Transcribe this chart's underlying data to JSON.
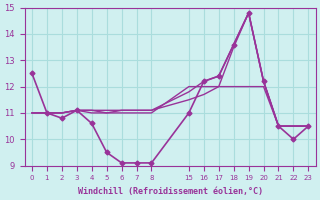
{
  "background_color": "#d0f0f0",
  "grid_color": "#aadddd",
  "line_color": "#993399",
  "marker_color": "#993399",
  "xlabel": "Windchill (Refroidissement éolien,°C)",
  "ylabel": "",
  "title": "",
  "ylim": [
    9,
    15
  ],
  "yticks": [
    9,
    10,
    11,
    12,
    13,
    14,
    15
  ],
  "xticks_left": [
    0,
    1,
    2,
    3,
    4,
    5,
    6,
    7,
    8
  ],
  "xticks_right": [
    15,
    16,
    17,
    18,
    19,
    20,
    21,
    22,
    23
  ],
  "series": [
    {
      "x": [
        0,
        1,
        2,
        3,
        4,
        5,
        6,
        7,
        8,
        15,
        16,
        17,
        18,
        19,
        20,
        21,
        22,
        23
      ],
      "y": [
        12.5,
        11.0,
        10.8,
        11.1,
        10.6,
        9.5,
        9.1,
        9.1,
        9.1,
        11.0,
        12.2,
        12.4,
        13.6,
        14.8,
        12.2,
        10.5,
        10.0,
        10.5
      ],
      "marker": "D",
      "markersize": 2.5,
      "linewidth": 1.2
    },
    {
      "x": [
        0,
        1,
        2,
        3,
        4,
        5,
        6,
        7,
        8,
        15,
        16,
        17,
        18,
        19,
        20,
        21,
        22,
        23
      ],
      "y": [
        11.0,
        11.0,
        11.0,
        11.1,
        11.0,
        11.0,
        11.1,
        11.1,
        11.1,
        11.5,
        11.7,
        12.0,
        13.5,
        14.8,
        12.2,
        10.5,
        10.5,
        10.5
      ],
      "marker": "D",
      "markersize": 0,
      "linewidth": 1.0
    },
    {
      "x": [
        0,
        1,
        2,
        3,
        4,
        5,
        6,
        7,
        8,
        15,
        16,
        17,
        18,
        19,
        20,
        21,
        22,
        23
      ],
      "y": [
        11.0,
        11.0,
        11.0,
        11.1,
        11.1,
        11.1,
        11.1,
        11.1,
        11.1,
        11.8,
        12.2,
        12.4,
        13.6,
        14.8,
        12.2,
        10.5,
        10.5,
        10.5
      ],
      "marker": "D",
      "markersize": 0,
      "linewidth": 1.0
    },
    {
      "x": [
        0,
        1,
        2,
        3,
        4,
        5,
        6,
        7,
        8,
        15,
        16,
        17,
        18,
        19,
        20,
        21,
        22,
        23
      ],
      "y": [
        11.0,
        11.0,
        11.0,
        11.1,
        11.1,
        11.0,
        11.0,
        11.0,
        11.0,
        12.0,
        12.0,
        12.0,
        12.0,
        12.0,
        12.0,
        10.5,
        10.5,
        10.5
      ],
      "marker": "D",
      "markersize": 0,
      "linewidth": 1.0
    }
  ]
}
